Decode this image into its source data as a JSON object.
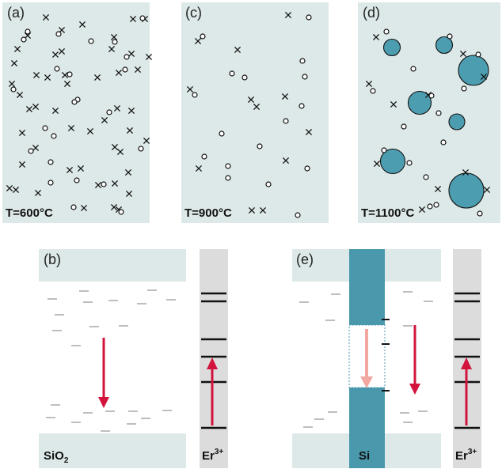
{
  "colors": {
    "panel_bg": "#dde9e8",
    "band_bg": "#dde9e8",
    "er_bar_bg": "#dcdcdc",
    "nanocluster": "#4d9db1",
    "si_bar": "#4a98ac",
    "arrow_main": "#d2143c",
    "arrow_light": "#f2a8a0",
    "defect_level": "#9a9a9a",
    "marker": "#111111"
  },
  "panels": {
    "a": {
      "label": "(a)",
      "temperature": "T=600°C"
    },
    "c": {
      "label": "(c)",
      "temperature": "T=900°C"
    },
    "d": {
      "label": "(d)",
      "temperature": "T=1100°C"
    },
    "b": {
      "label": "(b)",
      "material": "SiO",
      "material_sub": "2",
      "ion": "Er",
      "ion_sup": "3+"
    },
    "e": {
      "label": "(e)",
      "material": "Si",
      "ion": "Er",
      "ion_sup": "3+"
    }
  },
  "legend_symbols": {
    "cross": "cross-marker",
    "circle": "circle-marker"
  }
}
